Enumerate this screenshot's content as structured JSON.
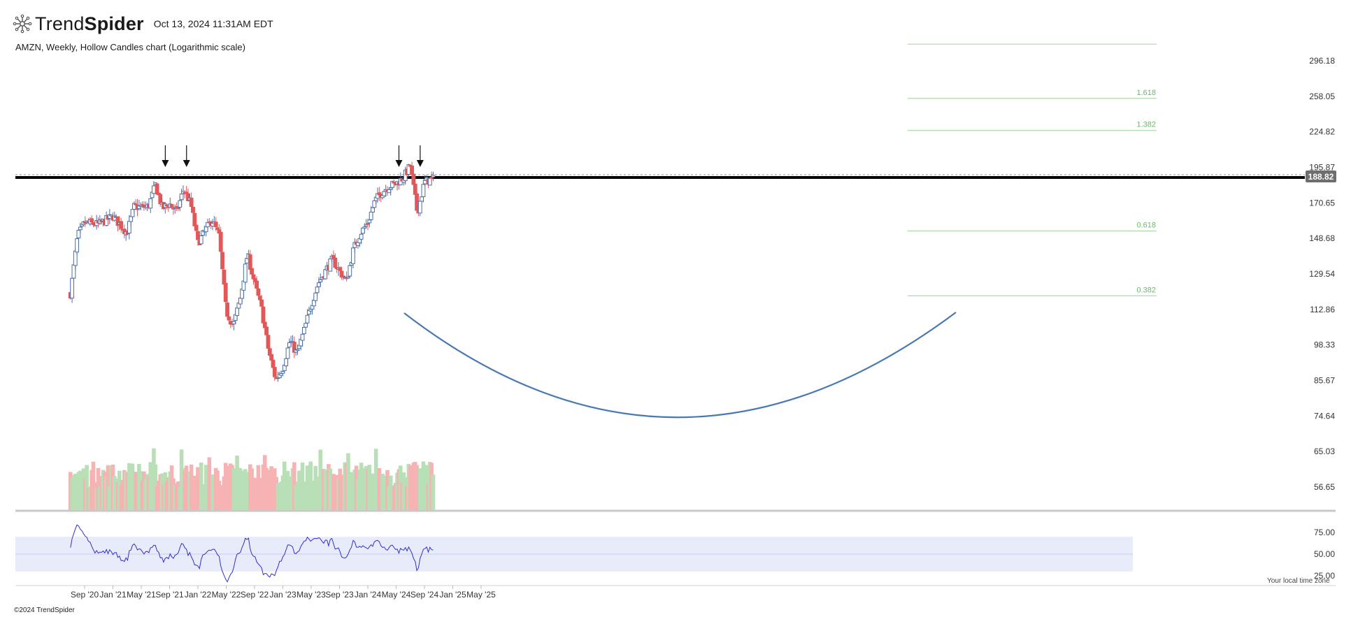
{
  "header": {
    "brand_light": "Trend",
    "brand_bold": "Spider",
    "timestamp": "Oct 13, 2024 11:31AM EDT",
    "subtitle": "AMZN, Weekly, Hollow Candles chart (Logarithmic scale)"
  },
  "footer": {
    "copyright": "©2024 TrendSpider",
    "tz_note": "Your local time zone"
  },
  "colors": {
    "up": "#4a6ea8",
    "down": "#e25858",
    "vol_up": "#b9dfb6",
    "vol_down": "#f7b3b3",
    "fib": "#9cd19a",
    "fib_label": "#6ab86a",
    "curve": "#4a78b2",
    "rsi": "#3030c8",
    "rsi_band": "#e8ebfa",
    "resistance": "#000000",
    "last_tag": "#6e6e6e"
  },
  "chart_data": [
    {
      "type": "candlestick",
      "symbol": "AMZN",
      "interval": "Weekly",
      "style": "Hollow Candles",
      "scale": "log",
      "x_ticks": [
        "Sep '20",
        "Jan '21",
        "May '21",
        "Sep '21",
        "Jan '22",
        "May '22",
        "Sep '22",
        "Jan '23",
        "May '23",
        "Sep '23",
        "Jan '24",
        "May '24",
        "Sep '24",
        "Jan '25",
        "May '25"
      ],
      "y_ticks": [
        "296.18",
        "258.05",
        "224.82",
        "195.87",
        "170.65",
        "148.68",
        "129.54",
        "112.86",
        "98.33",
        "85.67",
        "74.64",
        "65.03",
        "56.65"
      ],
      "last_price": "188.82",
      "resistance_level": 188.82,
      "fib_levels": [
        {
          "label": "1.618",
          "value": 256
        },
        {
          "label": "1.382",
          "value": 226
        },
        {
          "label": "0.618",
          "value": 153
        },
        {
          "label": "0.382",
          "value": 119
        }
      ],
      "fib_top_level": 316,
      "arrows_at": [
        "Aug '21",
        "Nov '21",
        "May '24",
        "Aug '24"
      ],
      "pattern": "cup",
      "anchors": [
        {
          "t": "Jul '20",
          "v": 120
        },
        {
          "t": "Aug '20",
          "v": 150
        },
        {
          "t": "Sep '20",
          "v": 158
        },
        {
          "t": "Nov '20",
          "v": 157
        },
        {
          "t": "Jan '21",
          "v": 162
        },
        {
          "t": "Mar '21",
          "v": 152
        },
        {
          "t": "Apr '21",
          "v": 168
        },
        {
          "t": "Jun '21",
          "v": 168
        },
        {
          "t": "Jul '21",
          "v": 183
        },
        {
          "t": "Aug '21",
          "v": 167
        },
        {
          "t": "Sep '21",
          "v": 170
        },
        {
          "t": "Oct '21",
          "v": 165
        },
        {
          "t": "Nov '21",
          "v": 180
        },
        {
          "t": "Dec '21",
          "v": 170
        },
        {
          "t": "Jan '22",
          "v": 146
        },
        {
          "t": "Feb '22",
          "v": 153
        },
        {
          "t": "Mar '22",
          "v": 160
        },
        {
          "t": "Apr '22",
          "v": 150
        },
        {
          "t": "May '22",
          "v": 112
        },
        {
          "t": "Jun '22",
          "v": 106
        },
        {
          "t": "Jul '22",
          "v": 118
        },
        {
          "t": "Aug '22",
          "v": 140
        },
        {
          "t": "Sep '22",
          "v": 125
        },
        {
          "t": "Oct '22",
          "v": 113
        },
        {
          "t": "Nov '22",
          "v": 96
        },
        {
          "t": "Dec '22",
          "v": 86
        },
        {
          "t": "Jan '23",
          "v": 90
        },
        {
          "t": "Feb '23",
          "v": 100
        },
        {
          "t": "Mar '23",
          "v": 95
        },
        {
          "t": "Apr '23",
          "v": 104
        },
        {
          "t": "May '23",
          "v": 115
        },
        {
          "t": "Jun '23",
          "v": 125
        },
        {
          "t": "Jul '23",
          "v": 131
        },
        {
          "t": "Aug '23",
          "v": 137
        },
        {
          "t": "Sep '23",
          "v": 131
        },
        {
          "t": "Oct '23",
          "v": 126
        },
        {
          "t": "Nov '23",
          "v": 143
        },
        {
          "t": "Dec '23",
          "v": 152
        },
        {
          "t": "Jan '24",
          "v": 158
        },
        {
          "t": "Feb '24",
          "v": 172
        },
        {
          "t": "Mar '24",
          "v": 178
        },
        {
          "t": "Apr '24",
          "v": 182
        },
        {
          "t": "May '24",
          "v": 184
        },
        {
          "t": "Jun '24",
          "v": 188
        },
        {
          "t": "Jul '24",
          "v": 197
        },
        {
          "t": "Aug '24",
          "v": 164
        },
        {
          "t": "Sep '24",
          "v": 185
        },
        {
          "t": "Oct '24",
          "v": 187
        }
      ]
    },
    {
      "type": "bar",
      "name": "volume",
      "note": "weekly volume histogram under price"
    },
    {
      "type": "line",
      "name": "rsi",
      "y_ticks": [
        "75.00",
        "50.00",
        "25.00"
      ],
      "band": [
        30,
        70
      ]
    }
  ]
}
